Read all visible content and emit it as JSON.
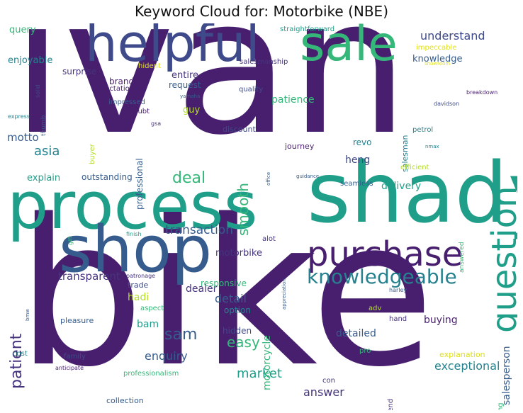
{
  "title": "Keyword Cloud for: Motorbike (NBE)",
  "palette": {
    "purple": "#481f6f",
    "indigo": "#46337e",
    "slate": "#3e4a89",
    "steel": "#365c8d",
    "blue": "#2e6e8e",
    "teal": "#26828e",
    "cyan": "#1f9e89",
    "green": "#35b779",
    "lime": "#6ece58",
    "yellowgreen": "#b5de2b",
    "yellow": "#e0e21b"
  },
  "words": [
    {
      "text": "ivan",
      "color": "purple"
    },
    {
      "text": "bike",
      "color": "purple"
    },
    {
      "text": "shady",
      "color": "cyan"
    },
    {
      "text": "process",
      "color": "cyan"
    },
    {
      "text": "helpful",
      "color": "slate"
    },
    {
      "text": "shop",
      "color": "steel"
    },
    {
      "text": "sale",
      "color": "green"
    },
    {
      "text": "purchase",
      "color": "purple"
    },
    {
      "text": "question",
      "color": "cyan"
    },
    {
      "text": "knowledgeable",
      "color": "teal"
    },
    {
      "text": "deal",
      "color": "green"
    },
    {
      "text": "smooth",
      "color": "green"
    },
    {
      "text": "transaction",
      "color": "steel"
    },
    {
      "text": "asia",
      "color": "teal"
    },
    {
      "text": "patient",
      "color": "indigo"
    },
    {
      "text": "sam",
      "color": "steel"
    },
    {
      "text": "easy",
      "color": "green"
    },
    {
      "text": "detail",
      "color": "steel"
    },
    {
      "text": "market",
      "color": "cyan"
    },
    {
      "text": "exceptional",
      "color": "teal"
    },
    {
      "text": "answer",
      "color": "indigo"
    },
    {
      "text": "enquiry",
      "color": "steel"
    },
    {
      "text": "understand",
      "color": "slate"
    },
    {
      "text": "salesperson",
      "color": "steel"
    },
    {
      "text": "transparent",
      "color": "indigo"
    },
    {
      "text": "motorcycle",
      "color": "green"
    },
    {
      "text": "delivery",
      "color": "cyan"
    },
    {
      "text": "detailed",
      "color": "steel"
    },
    {
      "text": "motto",
      "color": "steel"
    },
    {
      "text": "heng",
      "color": "slate"
    },
    {
      "text": "dealer",
      "color": "indigo"
    },
    {
      "text": "patience",
      "color": "green"
    },
    {
      "text": "buying",
      "color": "purple"
    },
    {
      "text": "enjoyable",
      "color": "teal"
    },
    {
      "text": "bam",
      "color": "cyan"
    },
    {
      "text": "query",
      "color": "green"
    },
    {
      "text": "hadi",
      "color": "yellowgreen"
    },
    {
      "text": "motorbike",
      "color": "indigo"
    },
    {
      "text": "explain",
      "color": "cyan"
    },
    {
      "text": "knowledge",
      "color": "steel"
    },
    {
      "text": "revo",
      "color": "teal"
    },
    {
      "text": "guy",
      "color": "yellowgreen"
    },
    {
      "text": "entire",
      "color": "indigo"
    },
    {
      "text": "hidden",
      "color": "slate"
    },
    {
      "text": "option",
      "color": "teal"
    },
    {
      "text": "responsive",
      "color": "green"
    },
    {
      "text": "outstanding",
      "color": "steel"
    },
    {
      "text": "professional",
      "color": "steel"
    },
    {
      "text": "explanation",
      "color": "yellow"
    },
    {
      "text": "request",
      "color": "steel"
    },
    {
      "text": "brand",
      "color": "purple"
    },
    {
      "text": "surprise",
      "color": "indigo"
    },
    {
      "text": "salesman",
      "color": "teal"
    },
    {
      "text": "discount",
      "color": "slate"
    },
    {
      "text": "trade",
      "color": "slate"
    },
    {
      "text": "journey",
      "color": "purple"
    },
    {
      "text": "collection",
      "color": "steel"
    },
    {
      "text": "pleasure",
      "color": "steel"
    },
    {
      "text": "efficient",
      "color": "yellowgreen"
    },
    {
      "text": "impeccable",
      "color": "yellow"
    },
    {
      "text": "petrol",
      "color": "teal"
    },
    {
      "text": "seamless",
      "color": "steel"
    },
    {
      "text": "straightforward",
      "color": "cyan"
    },
    {
      "text": "quality",
      "color": "slate"
    },
    {
      "text": "expectation",
      "color": "purple"
    },
    {
      "text": "impressed",
      "color": "steel"
    },
    {
      "text": "doubt",
      "color": "purple"
    },
    {
      "text": "salesmanship",
      "color": "indigo"
    },
    {
      "text": "aspect",
      "color": "green"
    },
    {
      "text": "family",
      "color": "slate"
    },
    {
      "text": "professionalism",
      "color": "green"
    },
    {
      "text": "alot",
      "color": "indigo"
    },
    {
      "text": "hand",
      "color": "indigo"
    },
    {
      "text": "pro",
      "color": "green"
    },
    {
      "text": "con",
      "color": "indigo"
    },
    {
      "text": "adv",
      "color": "yellowgreen"
    },
    {
      "text": "cost",
      "color": "teal"
    },
    {
      "text": "buyer",
      "color": "yellowgreen"
    },
    {
      "text": "friend",
      "color": "indigo"
    },
    {
      "text": "rating",
      "color": "green"
    },
    {
      "text": "hident",
      "color": "yellow"
    },
    {
      "text": "answered",
      "color": "green"
    },
    {
      "text": "thumb",
      "color": "steel"
    },
    {
      "text": "solid",
      "color": "slate"
    },
    {
      "text": "express",
      "color": "teal"
    },
    {
      "text": "gsa",
      "color": "indigo"
    },
    {
      "text": "yamaha",
      "color": "steel"
    },
    {
      "text": "davidson",
      "color": "slate"
    },
    {
      "text": "breakdown",
      "color": "purple"
    },
    {
      "text": "showroom",
      "color": "yellow"
    },
    {
      "text": "office",
      "color": "steel"
    },
    {
      "text": "nmax",
      "color": "teal"
    },
    {
      "text": "guidance",
      "color": "steel"
    },
    {
      "text": "finish",
      "color": "cyan"
    },
    {
      "text": "gift",
      "color": "green"
    },
    {
      "text": "patronage",
      "color": "indigo"
    },
    {
      "text": "appreciation",
      "color": "steel"
    },
    {
      "text": "harley",
      "color": "steel"
    },
    {
      "text": "bmw",
      "color": "steel"
    },
    {
      "text": "anticipate",
      "color": "purple"
    }
  ]
}
